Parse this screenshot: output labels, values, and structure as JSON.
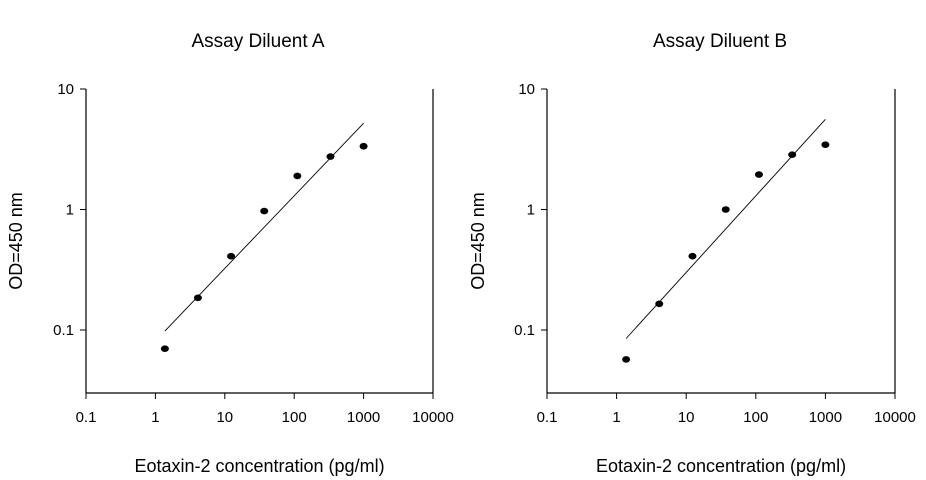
{
  "chart_data": [
    {
      "type": "scatter",
      "title": "Assay Diluent A",
      "xlabel": "Eotaxin-2 concentration (pg/ml)",
      "ylabel": "OD=450 nm",
      "xscale": "log",
      "yscale": "log",
      "xlim": [
        0.1,
        10000
      ],
      "ylim": [
        0.03,
        10
      ],
      "xticks": [
        "0.1",
        "1",
        "10",
        "100",
        "1000",
        "10000"
      ],
      "yticks": [
        "0.1",
        "1",
        "10"
      ],
      "grid": false,
      "series": [
        {
          "points": [
            {
              "x": 1.37,
              "y": 0.07
            },
            {
              "x": 4.1,
              "y": 0.185
            },
            {
              "x": 12.3,
              "y": 0.41
            },
            {
              "x": 37,
              "y": 0.97
            },
            {
              "x": 111,
              "y": 1.9
            },
            {
              "x": 333,
              "y": 2.75
            },
            {
              "x": 1000,
              "y": 3.35
            }
          ]
        }
      ],
      "fit_line": {
        "x": [
          1.37,
          1000
        ],
        "y": [
          0.098,
          5.2
        ]
      }
    },
    {
      "type": "scatter",
      "title": "Assay Diluent B",
      "xlabel": "Eotaxin-2 concentration (pg/ml)",
      "ylabel": "OD=450 nm",
      "xscale": "log",
      "yscale": "log",
      "xlim": [
        0.1,
        10000
      ],
      "ylim": [
        0.03,
        10
      ],
      "xticks": [
        "0.1",
        "1",
        "10",
        "100",
        "1000",
        "10000"
      ],
      "yticks": [
        "0.1",
        "1",
        "10"
      ],
      "grid": false,
      "series": [
        {
          "points": [
            {
              "x": 1.37,
              "y": 0.057
            },
            {
              "x": 4.1,
              "y": 0.165
            },
            {
              "x": 12.3,
              "y": 0.41
            },
            {
              "x": 37,
              "y": 1.0
            },
            {
              "x": 111,
              "y": 1.95
            },
            {
              "x": 333,
              "y": 2.85
            },
            {
              "x": 1000,
              "y": 3.45
            }
          ]
        }
      ],
      "fit_line": {
        "x": [
          1.37,
          1000
        ],
        "y": [
          0.085,
          5.6
        ]
      }
    }
  ]
}
